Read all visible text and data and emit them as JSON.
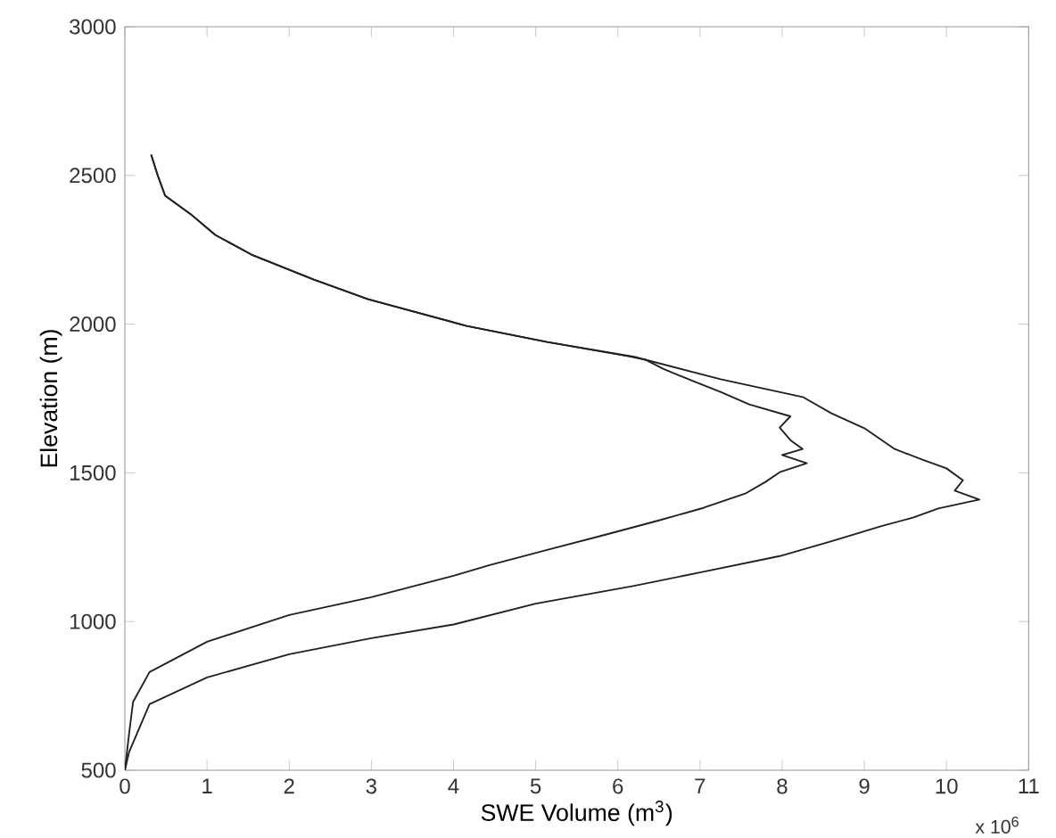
{
  "chart_data": {
    "type": "line",
    "xlabel": "SWE Volume (m$^{3}$)",
    "ylabel": "Elevation (m)",
    "xlim": [
      0,
      11
    ],
    "xticks": [
      0,
      1,
      2,
      3,
      4,
      5,
      6,
      7,
      8,
      9,
      10,
      11
    ],
    "ylim": [
      500,
      3000
    ],
    "yticks": [
      500,
      1000,
      1500,
      2000,
      2500,
      3000
    ],
    "grid": false,
    "marker": "none",
    "line_style": "solid",
    "annotations": [
      "x 10$^{6}$"
    ],
    "series": [
      {
        "color": "#202020",
        "x": [
          0,
          0.05,
          0.1,
          0.3,
          1,
          2,
          3,
          4,
          4.44,
          5.2,
          5.85,
          6.5,
          7.04,
          7.55,
          7.8,
          7.97,
          8.3,
          8.0,
          8.25,
          8.1,
          7.97,
          8.1,
          7.6,
          7.25,
          6.9,
          6.55,
          6.34,
          6.13,
          5.14,
          4.16,
          2.96,
          2.3,
          1.54,
          1.1,
          0.8,
          0.49,
          0.4,
          0.32
        ],
        "values": [
          500,
          620,
          730,
          830,
          932,
          1022,
          1082,
          1154,
          1190,
          1245,
          1292,
          1340,
          1382,
          1430,
          1470,
          1502,
          1532,
          1560,
          1580,
          1610,
          1652,
          1690,
          1730,
          1772,
          1810,
          1850,
          1880,
          1892,
          1940,
          1994,
          2084,
          2150,
          2234,
          2300,
          2370,
          2432,
          2500,
          2570
        ]
      },
      {
        "color": "#202020",
        "x": [
          0,
          0.05,
          0.3,
          1,
          2,
          3,
          4,
          5,
          6.2,
          7.0,
          7.97,
          8.6,
          9.2,
          9.6,
          9.9,
          10.4,
          10.1,
          10.2,
          10.0,
          9.7,
          9.37,
          9.0,
          8.6,
          8.25,
          7.25,
          6.2,
          5.14,
          4.16,
          2.96,
          2.3,
          1.54,
          1.1,
          0.8,
          0.49,
          0.4,
          0.32
        ],
        "values": [
          500,
          560,
          722,
          812,
          890,
          944,
          990,
          1060,
          1120,
          1165,
          1220,
          1270,
          1320,
          1350,
          1380,
          1410,
          1440,
          1475,
          1515,
          1545,
          1580,
          1650,
          1700,
          1755,
          1815,
          1890,
          1940,
          1994,
          2084,
          2150,
          2234,
          2300,
          2370,
          2432,
          2500,
          2570
        ]
      }
    ]
  }
}
